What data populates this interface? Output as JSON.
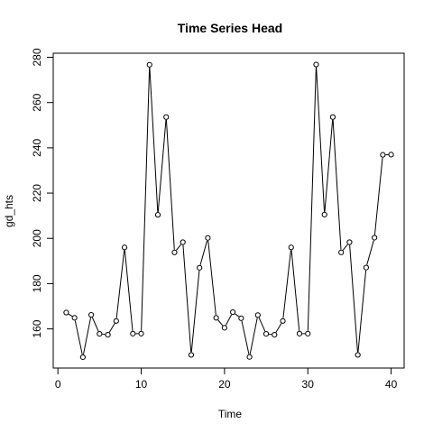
{
  "chart_data": {
    "type": "line",
    "title": "Time Series Head",
    "xlabel": "Time",
    "ylabel": "gd_hts",
    "xlim": [
      -0.56,
      41.56
    ],
    "ylim": [
      142.7,
      281.8
    ],
    "xticks": [
      0,
      10,
      20,
      30,
      40
    ],
    "yticks": [
      160,
      180,
      200,
      220,
      240,
      260,
      280
    ],
    "grid": false,
    "legend": "none",
    "marker": "open-circle",
    "series": [
      {
        "x": [
          1,
          2,
          3,
          4,
          5,
          6,
          7,
          8,
          9,
          10,
          11,
          12,
          13,
          14,
          15,
          16,
          17,
          18,
          19,
          20,
          21,
          22,
          23,
          24,
          25,
          26,
          27,
          28,
          29,
          30,
          31,
          32,
          33,
          34,
          35,
          36,
          37,
          38,
          39,
          40
        ],
        "values": [
          167.2,
          164.9,
          147.5,
          166.2,
          157.8,
          157.4,
          163.5,
          196.0,
          157.9,
          157.9,
          276.7,
          210.4,
          253.6,
          193.8,
          198.3,
          148.5,
          187.0,
          200.2,
          164.9,
          160.5,
          167.4,
          164.7,
          147.6,
          166.1,
          157.8,
          157.4,
          163.5,
          196.0,
          157.9,
          157.9,
          276.8,
          210.5,
          253.6,
          193.8,
          198.3,
          148.5,
          187.1,
          200.3,
          236.9,
          237.0
        ]
      }
    ]
  }
}
